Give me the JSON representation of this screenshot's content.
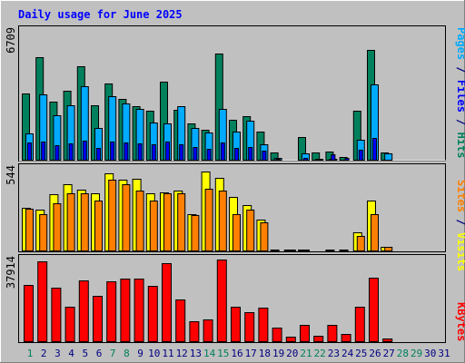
{
  "chart_data": [
    {
      "type": "bar",
      "title": "Daily usage for June 2025",
      "panel": "hits-files-pages",
      "ymax_label": "6709",
      "ylim": [
        0,
        6709
      ],
      "side_labels": [
        {
          "text": "Pages",
          "color": "#00AAFF"
        },
        {
          "text": " / ",
          "color": "#000080"
        },
        {
          "text": "Files",
          "color": "#0000FF"
        },
        {
          "text": " / ",
          "color": "#000080"
        },
        {
          "text": "Hits",
          "color": "#00805C"
        }
      ],
      "categories": [
        "1",
        "2",
        "3",
        "4",
        "5",
        "6",
        "7",
        "8",
        "9",
        "10",
        "11",
        "12",
        "13",
        "14",
        "15",
        "16",
        "17",
        "18",
        "19",
        "20",
        "21",
        "22",
        "23",
        "24",
        "25",
        "26",
        "27",
        "28",
        "29",
        "30",
        "31"
      ],
      "series": [
        {
          "name": "Hits",
          "color": "#00805C",
          "values": [
            3350,
            5150,
            2950,
            3500,
            4700,
            2750,
            3850,
            3100,
            2700,
            2500,
            3950,
            2550,
            1850,
            1550,
            5350,
            2050,
            2200,
            1450,
            400,
            50,
            1200,
            400,
            450,
            200,
            2500,
            5550,
            400,
            0,
            0,
            0,
            0
          ]
        },
        {
          "name": "Pages",
          "color": "#00AAFF",
          "values": [
            1350,
            3300,
            2250,
            2750,
            3700,
            1650,
            3200,
            2850,
            2600,
            1900,
            1850,
            2700,
            1650,
            1400,
            2600,
            1450,
            2000,
            800,
            150,
            40,
            350,
            100,
            100,
            50,
            1050,
            3800,
            380,
            0,
            0,
            0,
            0
          ]
        },
        {
          "name": "Files",
          "color": "#0000FF",
          "values": [
            900,
            950,
            750,
            850,
            1000,
            650,
            950,
            900,
            850,
            800,
            950,
            800,
            700,
            600,
            900,
            650,
            700,
            500,
            100,
            20,
            150,
            60,
            300,
            150,
            550,
            1150,
            40,
            0,
            0,
            0,
            0
          ]
        }
      ]
    },
    {
      "type": "bar",
      "panel": "visits-sites",
      "ymax_label": "544",
      "ylim": [
        0,
        544
      ],
      "side_labels": [
        {
          "text": "Sites",
          "color": "#FF8000"
        },
        {
          "text": " / ",
          "color": "#000080"
        },
        {
          "text": "Visits",
          "color": "#FFFF00"
        }
      ],
      "categories": [
        "1",
        "2",
        "3",
        "4",
        "5",
        "6",
        "7",
        "8",
        "9",
        "10",
        "11",
        "12",
        "13",
        "14",
        "15",
        "16",
        "17",
        "18",
        "19",
        "20",
        "21",
        "22",
        "23",
        "24",
        "25",
        "26",
        "27",
        "28",
        "29",
        "30",
        "31"
      ],
      "series": [
        {
          "name": "Visits",
          "color": "#FFFF00",
          "values": [
            270,
            260,
            355,
            420,
            385,
            360,
            490,
            445,
            455,
            360,
            370,
            380,
            230,
            500,
            460,
            340,
            290,
            200,
            10,
            10,
            10,
            5,
            10,
            10,
            120,
            320,
            30,
            0,
            0,
            0,
            0
          ]
        },
        {
          "name": "Sites",
          "color": "#FF8000",
          "values": [
            265,
            230,
            300,
            360,
            365,
            320,
            445,
            420,
            380,
            315,
            360,
            360,
            225,
            390,
            380,
            230,
            260,
            180,
            5,
            10,
            10,
            5,
            5,
            5,
            95,
            235,
            30,
            0,
            0,
            0,
            0
          ]
        }
      ]
    },
    {
      "type": "bar",
      "panel": "kbytes",
      "ymax_label": "37914",
      "ylim": [
        0,
        37914
      ],
      "side_labels": [
        {
          "text": "KBytes",
          "color": "#FF0000"
        }
      ],
      "categories": [
        "1",
        "2",
        "3",
        "4",
        "5",
        "6",
        "7",
        "8",
        "9",
        "10",
        "11",
        "12",
        "13",
        "14",
        "15",
        "16",
        "17",
        "18",
        "19",
        "20",
        "21",
        "22",
        "23",
        "24",
        "25",
        "26",
        "27",
        "28",
        "29",
        "30",
        "31"
      ],
      "series": [
        {
          "name": "KBytes",
          "color": "#FF0000",
          "values": [
            25000,
            35000,
            23500,
            15500,
            27000,
            20000,
            26500,
            27500,
            27500,
            24500,
            34500,
            18500,
            9000,
            9900,
            36000,
            15500,
            13000,
            15000,
            6500,
            2500,
            7500,
            2800,
            7500,
            3500,
            15500,
            28000,
            1500,
            0,
            0,
            0,
            0
          ]
        }
      ]
    }
  ],
  "x_label_colors": {
    "weekday": "#000080",
    "weekend": "#00805C"
  },
  "weekend_days": [
    1,
    7,
    8,
    14,
    15,
    21,
    22,
    28,
    29
  ]
}
